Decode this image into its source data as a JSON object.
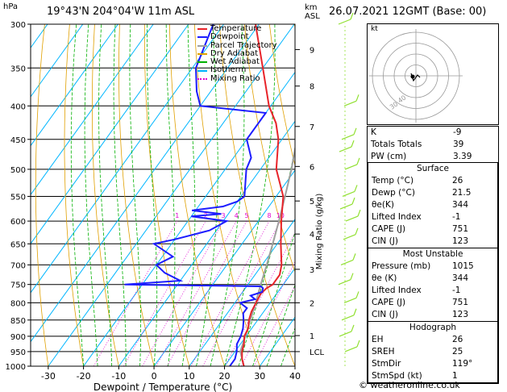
{
  "header": {
    "location": "19°43'N  204°04'W  11m  ASL",
    "datetime": "26.07.2021  12GMT  (Base: 00)",
    "hpa_label": "hPa",
    "km_label": "km\nASL"
  },
  "footer": {
    "credit": "© weatheronline.co.uk"
  },
  "legend": [
    "Temperature",
    "Dewpoint",
    "Parcel Trajectory",
    "Dry Adiabat",
    "Wet Adiabat",
    "Isotherm",
    "Mixing Ratio"
  ],
  "colors": {
    "temperature": "#e8242a",
    "dewpoint": "#1c1cff",
    "parcel": "#a0a0a0",
    "dry_adiabat": "#e0a000",
    "wet_adiabat": "#00b000",
    "isotherm": "#00b6ff",
    "mixing_ratio": "#e000d0",
    "wind": "#90e030"
  },
  "chart_data": {
    "type": "line",
    "title": "",
    "xlabel": "Dewpoint / Temperature (°C)",
    "ylabel": "",
    "right_label": "Mixing Ratio (g/kg)",
    "xlim": [
      -35,
      40
    ],
    "ylim_hpa": [
      1000,
      300
    ],
    "x_ticks": [
      -30,
      -20,
      -10,
      0,
      10,
      20,
      30,
      40
    ],
    "pressure_ticks": [
      300,
      350,
      400,
      450,
      500,
      550,
      600,
      650,
      700,
      750,
      800,
      850,
      900,
      950,
      1000
    ],
    "km_ticks": [
      {
        "label": "9",
        "p": 328
      },
      {
        "label": "8",
        "p": 373
      },
      {
        "label": "7",
        "p": 430
      },
      {
        "label": "6",
        "p": 495
      },
      {
        "label": "5",
        "p": 559
      },
      {
        "label": "4",
        "p": 628
      },
      {
        "label": "3",
        "p": 711
      },
      {
        "label": "2",
        "p": 800
      },
      {
        "label": "1",
        "p": 898
      },
      {
        "label": "LCL",
        "p": 950
      }
    ],
    "mixing_ratio_labels": [
      "1",
      "2",
      "3",
      "4",
      "5",
      "8",
      "10",
      "15",
      "20",
      "25"
    ],
    "temperature_profile": [
      [
        1000,
        25.5
      ],
      [
        975,
        23.5
      ],
      [
        950,
        22
      ],
      [
        925,
        21
      ],
      [
        900,
        19.5
      ],
      [
        875,
        19
      ],
      [
        850,
        17.5
      ],
      [
        825,
        16.5
      ],
      [
        800,
        16
      ],
      [
        775,
        15.5
      ],
      [
        760,
        16
      ],
      [
        750,
        17
      ],
      [
        725,
        17
      ],
      [
        700,
        15.5
      ],
      [
        650,
        11
      ],
      [
        600,
        6.5
      ],
      [
        550,
        2
      ],
      [
        500,
        -5.5
      ],
      [
        450,
        -11
      ],
      [
        425,
        -15
      ],
      [
        400,
        -20.5
      ],
      [
        350,
        -30
      ],
      [
        300,
        -41
      ]
    ],
    "dewpoint_profile": [
      [
        1000,
        21.5
      ],
      [
        975,
        21.5
      ],
      [
        950,
        20.5
      ],
      [
        925,
        19
      ],
      [
        900,
        18.5
      ],
      [
        875,
        17.5
      ],
      [
        850,
        16
      ],
      [
        830,
        14.5
      ],
      [
        815,
        14.5
      ],
      [
        800,
        11.5
      ],
      [
        790,
        15
      ],
      [
        780,
        13
      ],
      [
        770,
        15.5
      ],
      [
        760,
        15
      ],
      [
        755,
        14
      ],
      [
        750,
        -25
      ],
      [
        740,
        -10
      ],
      [
        720,
        -16
      ],
      [
        700,
        -20
      ],
      [
        680,
        -17
      ],
      [
        650,
        -25
      ],
      [
        640,
        -20
      ],
      [
        620,
        -12
      ],
      [
        600,
        -9
      ],
      [
        590,
        -20
      ],
      [
        585,
        -12
      ],
      [
        578,
        -21
      ],
      [
        570,
        -13
      ],
      [
        560,
        -10
      ],
      [
        550,
        -9
      ],
      [
        500,
        -14
      ],
      [
        480,
        -15
      ],
      [
        450,
        -20
      ],
      [
        430,
        -20
      ],
      [
        410,
        -20
      ],
      [
        400,
        -40
      ],
      [
        380,
        -44
      ],
      [
        350,
        -49
      ],
      [
        300,
        -53
      ]
    ],
    "parcel_profile": [
      [
        1000,
        25.5
      ],
      [
        950,
        21.5
      ],
      [
        900,
        19.8
      ],
      [
        850,
        17.9
      ],
      [
        800,
        15.9
      ],
      [
        750,
        13.6
      ],
      [
        700,
        11.3
      ],
      [
        650,
        8.7
      ],
      [
        600,
        5.8
      ],
      [
        550,
        2.5
      ],
      [
        500,
        -1.2
      ],
      [
        450,
        -5.8
      ],
      [
        400,
        -11.2
      ],
      [
        350,
        -18
      ],
      [
        300,
        -26.5
      ]
    ],
    "hodograph": {
      "label": "kt",
      "rings": [
        10,
        20,
        30,
        40
      ],
      "ring_labels": [
        "40",
        "30"
      ]
    },
    "indices": {
      "top": [
        {
          "label": "K",
          "value": "-9"
        },
        {
          "label": "Totals Totals",
          "value": "39"
        },
        {
          "label": "PW (cm)",
          "value": "3.39"
        }
      ],
      "surface": {
        "title": "Surface",
        "rows": [
          {
            "label": "Temp (°C)",
            "value": "26"
          },
          {
            "label": "Dewp (°C)",
            "value": "21.5"
          },
          {
            "label": "θe(K)",
            "value": "344"
          },
          {
            "label": "Lifted Index",
            "value": "-1"
          },
          {
            "label": "CAPE (J)",
            "value": "751"
          },
          {
            "label": "CIN (J)",
            "value": "123"
          }
        ]
      },
      "unstable": {
        "title": "Most Unstable",
        "rows": [
          {
            "label": "Pressure (mb)",
            "value": "1015"
          },
          {
            "label": "θe (K)",
            "value": "344"
          },
          {
            "label": "Lifted Index",
            "value": "-1"
          },
          {
            "label": "CAPE (J)",
            "value": "751"
          },
          {
            "label": "CIN (J)",
            "value": "123"
          }
        ]
      },
      "hodograph": {
        "title": "Hodograph",
        "rows": [
          {
            "label": "EH",
            "value": "26"
          },
          {
            "label": "SREH",
            "value": "25"
          },
          {
            "label": "StmDir",
            "value": "119°"
          },
          {
            "label": "StmSpd (kt)",
            "value": "1"
          }
        ]
      }
    }
  }
}
